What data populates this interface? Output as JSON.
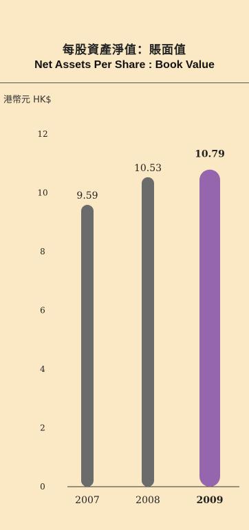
{
  "header": {
    "title_zh": "每股資產淨值：賬面值",
    "title_en": "Net Assets Per Share : Book Value",
    "unit": "港幣元 HK$"
  },
  "colors": {
    "background": "#fbe9c5",
    "bar_default": "#6b6b6b",
    "bar_highlight": "#9566ae",
    "text": "#222222"
  },
  "chart_data": {
    "type": "bar",
    "title": "每股資產淨值：賬面值 Net Assets Per Share : Book Value",
    "ylabel": "港幣元 HK$",
    "xlabel": "",
    "ylim": [
      0,
      12
    ],
    "yticks": [
      0,
      2,
      4,
      6,
      8,
      10,
      12
    ],
    "categories": [
      "2007",
      "2008",
      "2009"
    ],
    "values": [
      9.59,
      10.53,
      10.79
    ],
    "data_labels": [
      "9.59",
      "10.53",
      "10.79"
    ],
    "highlight_index": 2,
    "grid": false,
    "legend": "none"
  }
}
